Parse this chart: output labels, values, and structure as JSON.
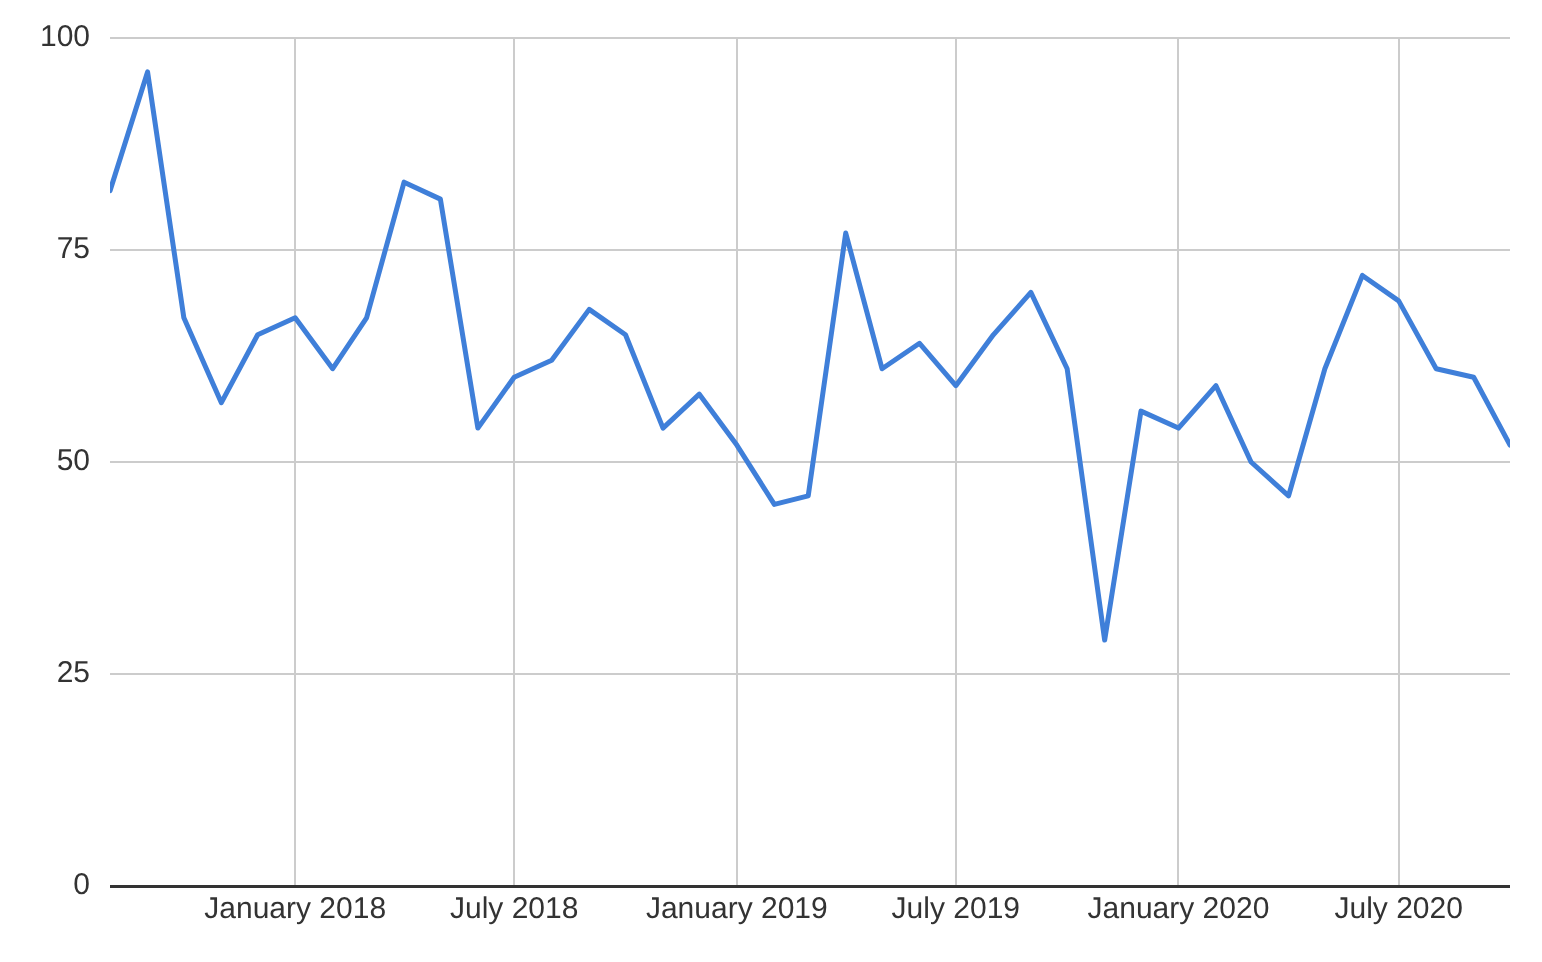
{
  "chart_data": {
    "type": "line",
    "x": [
      "2017-08",
      "2017-09",
      "2017-10",
      "2017-11",
      "2017-12",
      "2018-01",
      "2018-02",
      "2018-03",
      "2018-04",
      "2018-05",
      "2018-06",
      "2018-07",
      "2018-08",
      "2018-09",
      "2018-10",
      "2018-11",
      "2018-12",
      "2019-01",
      "2019-02",
      "2019-03",
      "2019-04",
      "2019-05",
      "2019-06",
      "2019-07",
      "2019-08",
      "2019-09",
      "2019-10",
      "2019-11",
      "2019-12",
      "2020-01",
      "2020-02",
      "2020-03",
      "2020-04",
      "2020-05",
      "2020-06",
      "2020-07",
      "2020-08",
      "2020-09",
      "2020-10"
    ],
    "series": [
      {
        "color": "#3f7fd9",
        "values": [
          82,
          96,
          67,
          57,
          65,
          67,
          61,
          67,
          83,
          81,
          54,
          60,
          62,
          68,
          65,
          54,
          58,
          52,
          45,
          46,
          77,
          61,
          64,
          59,
          65,
          70,
          61,
          29,
          56,
          54,
          59,
          50,
          46,
          61,
          72,
          69,
          61,
          60,
          52
        ]
      }
    ],
    "xlim": [
      "2017-08",
      "2020-10"
    ],
    "xticks": [
      {
        "value": "2018-01",
        "label": "January 2018"
      },
      {
        "value": "2018-07",
        "label": "July 2018"
      },
      {
        "value": "2019-01",
        "label": "January 2019"
      },
      {
        "value": "2019-07",
        "label": "July 2019"
      },
      {
        "value": "2020-01",
        "label": "January 2020"
      },
      {
        "value": "2020-07",
        "label": "July 2020"
      }
    ],
    "ylim": [
      0,
      100
    ],
    "yticks": [
      0,
      25,
      50,
      75,
      100
    ],
    "grid": true,
    "legend": false,
    "marker": "none",
    "line_style": "solid"
  }
}
